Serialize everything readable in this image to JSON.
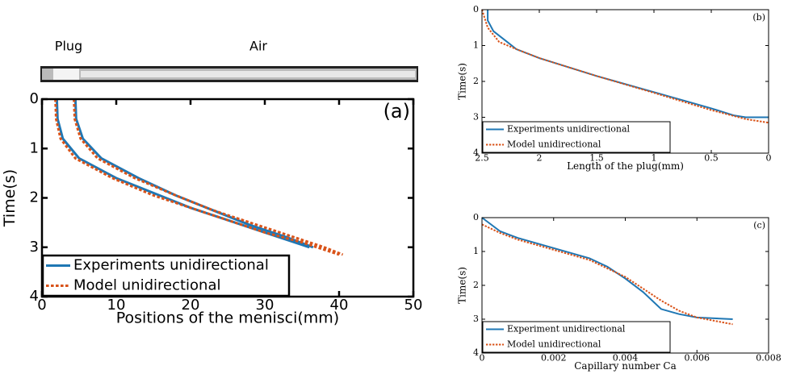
{
  "chart_data": [
    {
      "type": "line",
      "panel_label": "(a)",
      "annotations": [
        "Plug",
        "Air"
      ],
      "xlabel": "Positions of the menisci(mm)",
      "ylabel": "Time(s)",
      "xlim": [
        0,
        50
      ],
      "ylim": [
        0,
        4
      ],
      "y_inverted": true,
      "xticks": [
        0,
        10,
        20,
        30,
        40,
        50
      ],
      "yticks": [
        0,
        1,
        2,
        3,
        4
      ],
      "legend": "lower left",
      "series": [
        {
          "name": "Experiments unidirectional",
          "color": "#1f77b4",
          "dash": false,
          "lines": [
            {
              "x": [
                2,
                2.1,
                2.8,
                5,
                10,
                15,
                20,
                25,
                30,
                35,
                36
              ],
              "values": [
                0,
                0.4,
                0.8,
                1.2,
                1.6,
                1.9,
                2.2,
                2.45,
                2.7,
                2.95,
                3.0
              ]
            },
            {
              "x": [
                4.5,
                4.6,
                5.5,
                8,
                13,
                18,
                23,
                28,
                33,
                36.5
              ],
              "values": [
                0,
                0.4,
                0.8,
                1.2,
                1.6,
                1.95,
                2.25,
                2.55,
                2.8,
                3.0
              ]
            }
          ]
        },
        {
          "name": "Model unidirectional",
          "color": "#d95319",
          "dash": true,
          "lines": [
            {
              "x": [
                1.8,
                1.9,
                2.5,
                4.5,
                9.5,
                15,
                20,
                25,
                30,
                35,
                40
              ],
              "values": [
                0,
                0.4,
                0.8,
                1.2,
                1.6,
                1.95,
                2.2,
                2.45,
                2.7,
                2.9,
                3.15
              ]
            },
            {
              "x": [
                4.3,
                4.4,
                5.2,
                7.5,
                12.5,
                18,
                23,
                28,
                33,
                38,
                40.5
              ],
              "values": [
                0,
                0.4,
                0.8,
                1.2,
                1.6,
                1.95,
                2.25,
                2.5,
                2.75,
                3.0,
                3.15
              ]
            }
          ]
        }
      ]
    },
    {
      "type": "line",
      "panel_label": "(b)",
      "xlabel": "Length of the plug(mm)",
      "ylabel": "Time(s)",
      "xlim": [
        2.5,
        0
      ],
      "ylim": [
        0,
        4
      ],
      "y_inverted": true,
      "xticks": [
        2.5,
        2,
        1.5,
        1,
        0.5,
        0
      ],
      "yticks": [
        0,
        1,
        2,
        3,
        4
      ],
      "legend": "lower left",
      "series": [
        {
          "name": "Experiments unidirectional",
          "color": "#1f77b4",
          "dash": false,
          "lines": [
            {
              "x": [
                2.45,
                2.45,
                2.4,
                2.3,
                2.2,
                2,
                1.5,
                1,
                0.5,
                0.3,
                0.2,
                0
              ],
              "values": [
                0,
                0.3,
                0.6,
                0.85,
                1.1,
                1.35,
                1.85,
                2.3,
                2.75,
                2.95,
                3.0,
                3.0
              ]
            }
          ]
        },
        {
          "name": "Model unidirectional",
          "color": "#d95319",
          "dash": true,
          "lines": [
            {
              "x": [
                2.5,
                2.45,
                2.35,
                2.2,
                2,
                1.5,
                1,
                0.5,
                0.2,
                0
              ],
              "values": [
                0,
                0.5,
                0.9,
                1.1,
                1.35,
                1.85,
                2.32,
                2.8,
                3.05,
                3.15
              ]
            }
          ]
        }
      ]
    },
    {
      "type": "line",
      "panel_label": "(c)",
      "xlabel": "Capillary number Ca",
      "ylabel": "Time(s)",
      "xlim": [
        0,
        0.008
      ],
      "ylim": [
        0,
        4
      ],
      "y_inverted": true,
      "xticks": [
        0,
        0.002,
        0.004,
        0.006,
        0.008
      ],
      "yticks": [
        0,
        1,
        2,
        3,
        4
      ],
      "legend": "lower left",
      "series": [
        {
          "name": "Experiment unidirectional",
          "color": "#1f77b4",
          "dash": false,
          "lines": [
            {
              "x": [
                0,
                0.0005,
                0.001,
                0.002,
                0.003,
                0.0035,
                0.004,
                0.0045,
                0.005,
                0.0055,
                0.006,
                0.007
              ],
              "values": [
                0,
                0.4,
                0.6,
                0.9,
                1.2,
                1.45,
                1.8,
                2.2,
                2.7,
                2.85,
                2.95,
                3.0
              ]
            }
          ]
        },
        {
          "name": "Model unidirectional",
          "color": "#d95319",
          "dash": true,
          "lines": [
            {
              "x": [
                0,
                0.0005,
                0.001,
                0.002,
                0.003,
                0.004,
                0.0045,
                0.005,
                0.0055,
                0.006,
                0.007
              ],
              "values": [
                0.2,
                0.45,
                0.65,
                0.95,
                1.25,
                1.75,
                2.1,
                2.45,
                2.75,
                2.95,
                3.15
              ]
            }
          ]
        }
      ]
    }
  ]
}
